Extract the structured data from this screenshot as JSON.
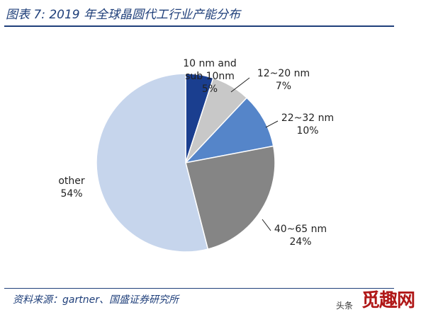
{
  "header": {
    "title": "图表 7: 2019 年全球晶圆代工行业产能分布"
  },
  "footer": {
    "source": "资料来源：gartner、国盛证券研究所",
    "watermark_text": "头条",
    "watermark_logo": "觅趣网"
  },
  "chart_data": {
    "type": "pie",
    "title": "图表 7: 2019 年全球晶圆代工行业产能分布",
    "slices": [
      {
        "label_lines": [
          "10 nm and",
          "sub 10nm"
        ],
        "pct_label": "5%",
        "value": 5,
        "color": "#1a3e8f"
      },
      {
        "label_lines": [
          "12~20 nm"
        ],
        "pct_label": "7%",
        "value": 7,
        "color": "#c8c8c8"
      },
      {
        "label_lines": [
          "22~32 nm"
        ],
        "pct_label": "10%",
        "value": 10,
        "color": "#5585c9"
      },
      {
        "label_lines": [
          "40~65 nm"
        ],
        "pct_label": "24%",
        "value": 24,
        "color": "#858585"
      },
      {
        "label_lines": [
          "other"
        ],
        "pct_label": "54%",
        "value": 54,
        "color": "#c6d5ec"
      }
    ]
  }
}
